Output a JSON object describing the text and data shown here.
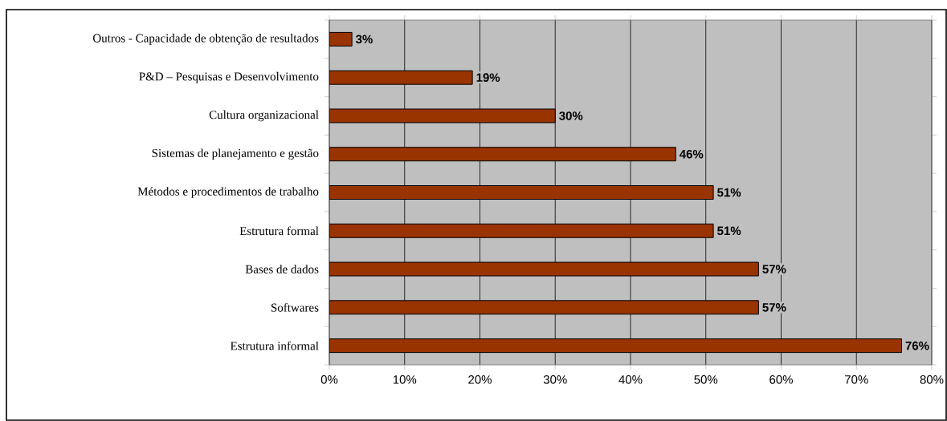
{
  "chart_data": {
    "type": "bar",
    "orientation": "horizontal",
    "categories": [
      "Outros - Capacidade de obtenção de resultados",
      "P&D – Pesquisas e Desenvolvimento",
      "Cultura organizacional",
      "Sistemas de planejamento e gestão",
      "Métodos e procedimentos de trabalho",
      "Estrutura formal",
      "Bases de dados",
      "Softwares",
      "Estrutura informal"
    ],
    "values": [
      3,
      19,
      30,
      46,
      51,
      51,
      57,
      57,
      76
    ],
    "value_labels": [
      "3%",
      "19%",
      "30%",
      "46%",
      "51%",
      "51%",
      "57%",
      "57%",
      "76%"
    ],
    "color": "#993300",
    "xlim": [
      0,
      80
    ],
    "xticks": [
      {
        "value": 0,
        "label": "0%"
      },
      {
        "value": 10,
        "label": "10%"
      },
      {
        "value": 20,
        "label": "20%"
      },
      {
        "value": 30,
        "label": "30%"
      },
      {
        "value": 40,
        "label": "40%"
      },
      {
        "value": 50,
        "label": "50%"
      },
      {
        "value": 60,
        "label": "60%"
      },
      {
        "value": 70,
        "label": "70%"
      },
      {
        "value": 80,
        "label": "80%"
      }
    ],
    "grid": "x"
  }
}
